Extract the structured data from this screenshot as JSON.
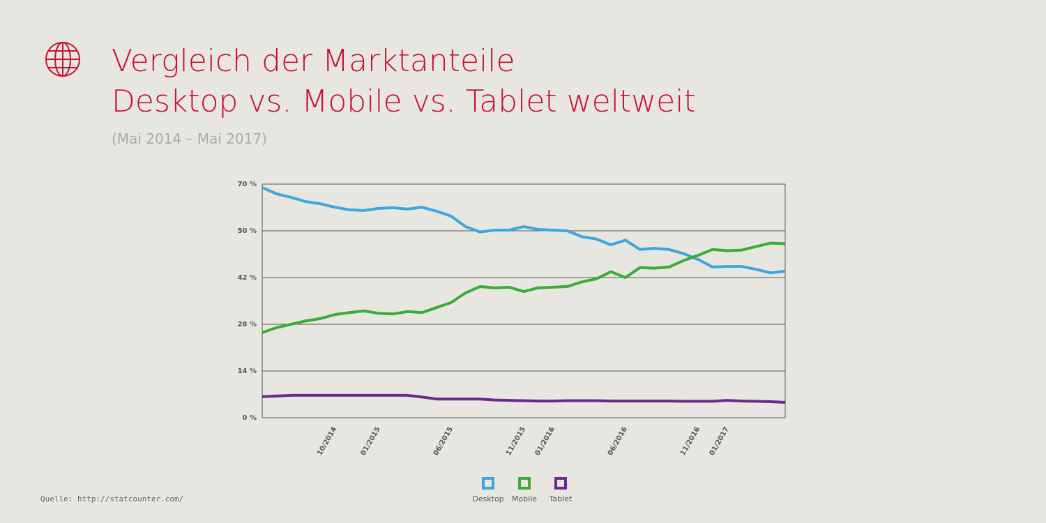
{
  "chart_data": {
    "type": "line",
    "title": [
      "Vergleich der Marktanteile",
      "Desktop vs. Mobile vs. Tablet weltweit"
    ],
    "subtitle": "(Mai 2014 – Mai 2017)",
    "source": "Quelle: http://statcounter.com/",
    "categories": [
      null,
      null,
      null,
      null,
      null,
      "10/2014",
      null,
      null,
      "01/2015",
      null,
      null,
      null,
      null,
      "06/2015",
      null,
      null,
      null,
      null,
      "11/2015",
      null,
      "01/2016",
      null,
      null,
      null,
      null,
      "06/2016",
      null,
      null,
      null,
      null,
      "11/2016",
      null,
      "01/2017",
      null,
      null,
      null,
      null
    ],
    "series": [
      {
        "name": "Desktop",
        "color": "#3ea6dc",
        "values": [
          68.5,
          65.8,
          64.3,
          62.5,
          61.6,
          60.1,
          59.0,
          58.7,
          59.6,
          59.9,
          59.3,
          60.1,
          58.4,
          56.3,
          51.8,
          49.8,
          50.3,
          50.3,
          51.8,
          50.6,
          50.3,
          50.0,
          49.0,
          48.6,
          47.6,
          48.4,
          46.8,
          47.0,
          46.8,
          46.1,
          45.1,
          43.8,
          43.9,
          43.9,
          43.4,
          42.8,
          43.1
        ]
      },
      {
        "name": "Mobile",
        "color": "#3daa3a",
        "values": [
          25.5,
          27.0,
          28.0,
          29.0,
          29.7,
          30.9,
          31.5,
          32.0,
          31.3,
          31.1,
          31.8,
          31.5,
          33.0,
          34.5,
          37.4,
          39.3,
          38.9,
          39.1,
          37.8,
          38.9,
          39.1,
          39.3,
          40.7,
          41.6,
          43.0,
          42.0,
          43.7,
          43.6,
          43.8,
          44.9,
          45.8,
          46.8,
          46.6,
          46.7,
          47.3,
          47.9,
          47.8
        ]
      },
      {
        "name": "Tablet",
        "color": "#6a2a8e",
        "values": [
          6.3,
          6.5,
          6.7,
          6.7,
          6.7,
          6.7,
          6.7,
          6.7,
          6.7,
          6.7,
          6.7,
          6.2,
          5.6,
          5.6,
          5.6,
          5.6,
          5.3,
          5.2,
          5.1,
          5.0,
          5.0,
          5.1,
          5.1,
          5.1,
          5.0,
          5.0,
          5.0,
          5.0,
          5.0,
          4.9,
          4.9,
          4.9,
          5.2,
          5.0,
          4.9,
          4.8,
          4.6
        ]
      }
    ],
    "ylim": [
      0,
      70
    ],
    "yticks": [
      {
        "value": 0,
        "label": "0 %"
      },
      {
        "value": 14,
        "label": "14 %"
      },
      {
        "value": 28,
        "label": "28 %"
      },
      {
        "value": 42,
        "label": "42 %"
      },
      {
        "value": 50,
        "label": "50 %"
      },
      {
        "value": 70,
        "label": "70 %"
      }
    ],
    "grid": true
  }
}
